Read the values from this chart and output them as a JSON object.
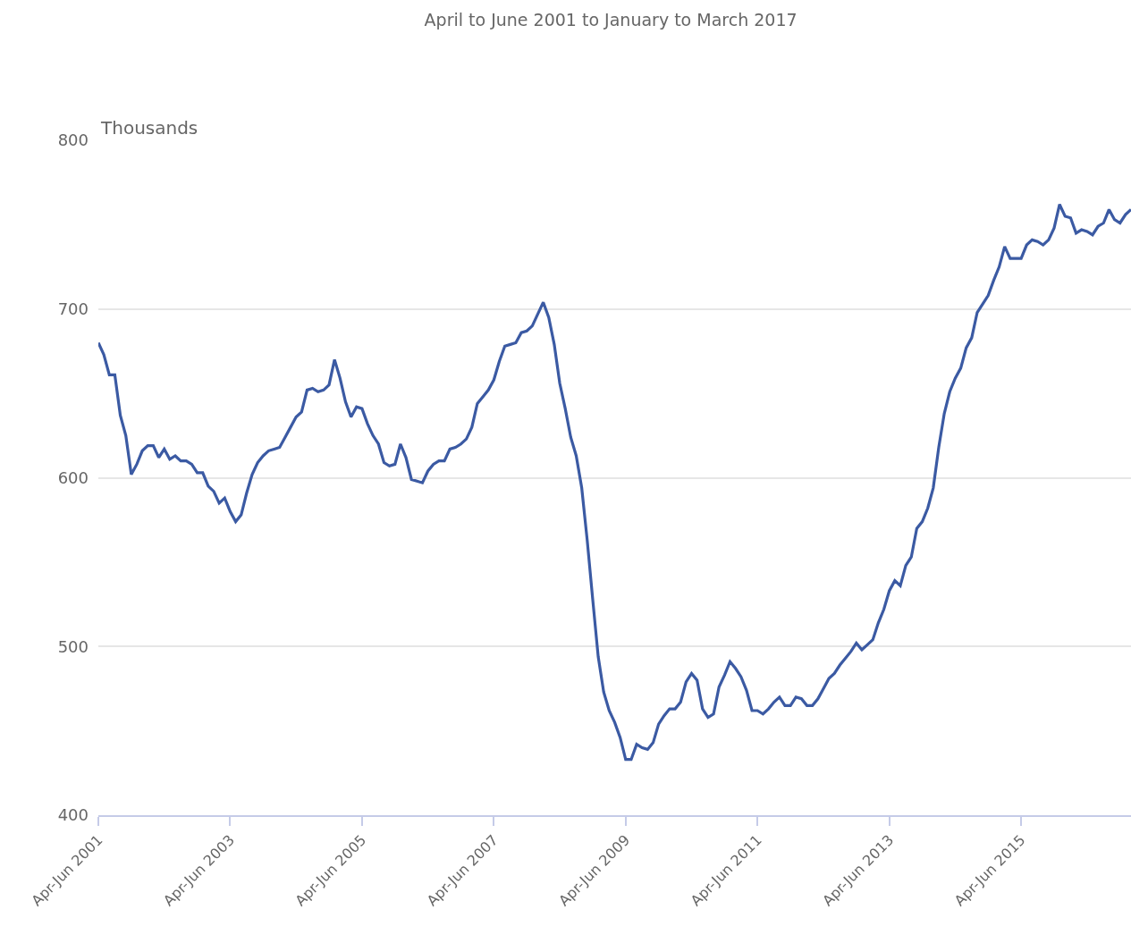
{
  "chart_data": {
    "type": "line",
    "title": "April to June 2001 to January to March 2017",
    "ylabel": "Thousands",
    "categories": [
      "Apr-Jun 2001",
      null,
      null,
      null,
      null,
      null,
      null,
      null,
      null,
      null,
      null,
      null,
      null,
      null,
      null,
      null,
      null,
      null,
      null,
      null,
      null,
      null,
      null,
      null,
      "Apr-Jun 2003",
      null,
      null,
      null,
      null,
      null,
      null,
      null,
      null,
      null,
      null,
      null,
      null,
      null,
      null,
      null,
      null,
      null,
      null,
      null,
      null,
      null,
      null,
      null,
      "Apr-Jun 2005",
      null,
      null,
      null,
      null,
      null,
      null,
      null,
      null,
      null,
      null,
      null,
      null,
      null,
      null,
      null,
      null,
      null,
      null,
      null,
      null,
      null,
      null,
      null,
      "Apr-Jun 2007",
      null,
      null,
      null,
      null,
      null,
      null,
      null,
      null,
      null,
      null,
      null,
      null,
      null,
      null,
      null,
      null,
      null,
      null,
      null,
      null,
      null,
      null,
      null,
      "Apr-Jun 2009",
      null,
      null,
      null,
      null,
      null,
      null,
      null,
      null,
      null,
      null,
      null,
      null,
      null,
      null,
      null,
      null,
      null,
      null,
      null,
      null,
      null,
      null,
      null,
      "Apr-Jun 2011",
      null,
      null,
      null,
      null,
      null,
      null,
      null,
      null,
      null,
      null,
      null,
      null,
      null,
      null,
      null,
      null,
      null,
      null,
      null,
      null,
      null,
      null,
      null,
      "Apr-Jun 2013",
      null,
      null,
      null,
      null,
      null,
      null,
      null,
      null,
      null,
      null,
      null,
      null,
      null,
      null,
      null,
      null,
      null,
      null,
      null,
      null,
      null,
      null,
      null,
      "Apr-Jun 2015",
      null,
      null,
      null,
      null,
      null,
      null,
      null,
      null,
      null,
      null,
      null,
      null,
      null,
      null,
      null,
      null,
      null,
      null,
      null,
      null
    ],
    "series": [
      {
        "color": "#3b5aa3",
        "values": [
          680,
          673,
          661,
          661,
          637,
          625,
          602,
          608,
          616,
          619,
          619,
          612,
          617,
          611,
          613,
          610,
          610,
          608,
          603,
          603,
          595,
          592,
          585,
          588,
          580,
          574,
          578,
          591,
          602,
          609,
          613,
          616,
          617,
          618,
          624,
          630,
          636,
          639,
          652,
          653,
          651,
          652,
          655,
          670,
          659,
          645,
          636,
          642,
          641,
          632,
          625,
          620,
          609,
          607,
          608,
          620,
          612,
          599,
          598,
          597,
          604,
          608,
          610,
          610,
          617,
          618,
          620,
          623,
          630,
          644,
          648,
          652,
          658,
          669,
          678,
          679,
          680,
          686,
          687,
          690,
          697,
          704,
          695,
          679,
          656,
          641,
          624,
          613,
          594,
          563,
          528,
          494,
          473,
          462,
          455,
          446,
          433,
          433,
          442,
          440,
          439,
          443,
          454,
          459,
          463,
          463,
          467,
          479,
          484,
          480,
          463,
          458,
          460,
          476,
          483,
          491,
          487,
          482,
          474,
          462,
          462,
          460,
          463,
          467,
          470,
          465,
          465,
          470,
          469,
          465,
          465,
          469,
          475,
          481,
          484,
          489,
          493,
          497,
          502,
          498,
          501,
          504,
          514,
          522,
          533,
          539,
          536,
          548,
          553,
          570,
          574,
          582,
          594,
          618,
          638,
          651,
          659,
          665,
          677,
          683,
          698,
          703,
          708,
          717,
          725,
          737,
          730,
          730,
          730,
          738,
          741,
          740,
          738,
          741,
          748,
          762,
          755,
          754,
          745,
          747,
          746,
          744,
          749,
          751,
          759,
          753,
          751,
          756,
          759
        ]
      }
    ],
    "ylim": [
      400,
      800
    ],
    "yticks": [
      400,
      500,
      600,
      700,
      800
    ],
    "grid": "y",
    "marker": "none",
    "line_style": "solid"
  }
}
